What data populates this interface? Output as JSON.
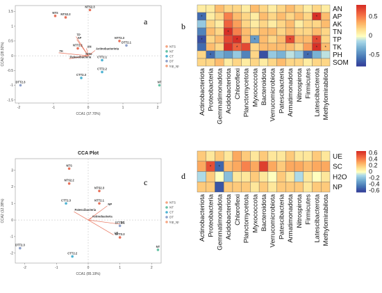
{
  "panel_letters": {
    "a": "a",
    "b": "b",
    "c": "c",
    "d": "d"
  },
  "chart_data": [
    {
      "panel": "a",
      "type": "scatter",
      "title": "",
      "xlabel": "CCA1 (37.70%)",
      "ylabel": "CCA2 (28.92%)",
      "xlim": [
        -2.1,
        2.1
      ],
      "ylim": [
        -1.6,
        1.7
      ],
      "xticks": [
        -2,
        -1,
        0,
        1,
        2
      ],
      "yticks": [
        -1.5,
        -1,
        -0.5,
        0,
        0.5,
        1,
        1.5
      ],
      "legend": [
        {
          "label": "NTS",
          "color": "#f4a582"
        },
        {
          "label": "NT",
          "color": "#66c2a5"
        },
        {
          "label": "CT",
          "color": "#4eb3d3"
        },
        {
          "label": "DT",
          "color": "#8da0cb"
        },
        {
          "label": "top_sp",
          "color": "#f4a582"
        }
      ],
      "points": [
        {
          "label": "NTS2.3",
          "x": 0.05,
          "y": 1.55,
          "color": "#e8725a"
        },
        {
          "label": "NTS",
          "x": -0.95,
          "y": 1.35,
          "color": "#e8725a"
        },
        {
          "label": "NTS2.2",
          "x": -0.65,
          "y": 1.3,
          "color": "#e8725a"
        },
        {
          "label": "NTT2.3",
          "x": 0.9,
          "y": 0.5,
          "color": "#e8725a"
        },
        {
          "label": "DTT2.1",
          "x": 1.1,
          "y": 0.35,
          "color": "#8da0cb"
        },
        {
          "label": "CTT2.1",
          "x": 0.4,
          "y": -0.15,
          "color": "#4eb3d3"
        },
        {
          "label": "CTT2.2",
          "x": 0.4,
          "y": -0.55,
          "color": "#4eb3d3"
        },
        {
          "label": "CTT2.3",
          "x": -0.2,
          "y": -0.75,
          "color": "#4eb3d3"
        },
        {
          "label": "DTT2.3",
          "x": -1.95,
          "y": -1.0,
          "color": "#8da0cb"
        },
        {
          "label": "NT",
          "x": 2.05,
          "y": -1.0,
          "color": "#66c2a5"
        },
        {
          "label": "NTT2.1",
          "x": -0.3,
          "y": 0.25,
          "color": "#e8725a"
        }
      ],
      "vectors": [
        {
          "label": "TP",
          "x": -0.35,
          "y": 0.65
        },
        {
          "label": "AP",
          "x": -0.33,
          "y": 0.55
        },
        {
          "label": "TK",
          "x": -0.85,
          "y": 0.1
        },
        {
          "label": "AN",
          "x": -0.05,
          "y": 0.25
        },
        {
          "label": "SOM",
          "x": -0.1,
          "y": 0.0
        },
        {
          "label": "Actinobacteriota",
          "x": 0.2,
          "y": 0.18
        },
        {
          "label": "Patescibacteria",
          "x": -0.55,
          "y": -0.1
        }
      ]
    },
    {
      "panel": "b",
      "type": "heatmap",
      "rows": [
        "AN",
        "AP",
        "AK",
        "TN",
        "TP",
        "TK",
        "PH",
        "SOM"
      ],
      "columns": [
        "Actinobacteriota",
        "Proteobacteria",
        "Gemmatimonadota",
        "Acidobacteriota",
        "Chloroflexi",
        "Planctomycetota",
        "Myxococcota",
        "Bacteroidota",
        "Verrucomicrobiota",
        "Patescibacteria",
        "Armatimonadota",
        "Nitrospirota",
        "Firmicutes",
        "Latescibacterota",
        "Methylomirabilota"
      ],
      "colorbar": {
        "min": -0.8,
        "max": 0.8,
        "ticks": [
          "0.5",
          "0",
          "-0.5"
        ]
      },
      "values": [
        [
          0.1,
          0.1,
          0.3,
          0.2,
          0.2,
          0.1,
          0.3,
          0.2,
          0.1,
          0.2,
          0.3,
          0.2,
          0.1,
          0.2,
          0.1
        ],
        [
          -0.6,
          0.1,
          0.2,
          0.5,
          0.3,
          0.2,
          0.1,
          0.3,
          0.2,
          0.3,
          0.2,
          0.3,
          0.2,
          0.8,
          0.3
        ],
        [
          -0.2,
          0.2,
          0.1,
          0.6,
          0.4,
          0.2,
          0.1,
          0.2,
          0.1,
          0.2,
          0.3,
          0.1,
          0.2,
          0.2,
          0.3
        ],
        [
          -0.5,
          0.3,
          0.2,
          0.8,
          0.5,
          0.3,
          0.2,
          0.3,
          0.3,
          0.2,
          0.3,
          0.2,
          0.2,
          0.3,
          0.2
        ],
        [
          -0.7,
          0.2,
          0.3,
          0.7,
          0.8,
          0.3,
          -0.4,
          0.3,
          0.2,
          0.3,
          0.7,
          0.3,
          0.3,
          0.7,
          0.2
        ],
        [
          -0.6,
          0.3,
          0.2,
          0.8,
          0.6,
          0.7,
          0.2,
          0.3,
          0.3,
          0.3,
          0.3,
          0.2,
          0.4,
          0.8,
          0.3
        ],
        [
          0.2,
          -0.6,
          -0.3,
          -0.4,
          -0.2,
          -0.5,
          0.2,
          -0.7,
          -0.2,
          -0.3,
          -0.1,
          -0.2,
          -0.6,
          -0.3,
          -0.1
        ],
        [
          0.2,
          0.2,
          0.3,
          0.1,
          0.2,
          0.1,
          0.2,
          0.1,
          0.2,
          0.3,
          0.2,
          0.2,
          0.1,
          0.2,
          0.2
        ]
      ],
      "stars": [
        [
          1,
          0
        ],
        [
          1,
          13
        ],
        [
          3,
          3
        ],
        [
          4,
          0
        ],
        [
          4,
          4
        ],
        [
          4,
          6
        ],
        [
          4,
          10
        ],
        [
          4,
          13
        ],
        [
          5,
          4
        ],
        [
          5,
          13
        ],
        [
          5,
          14
        ],
        [
          6,
          1
        ],
        [
          6,
          12
        ]
      ]
    },
    {
      "panel": "c",
      "type": "scatter",
      "title": "CCA Plot",
      "xlabel": "CCA1 (85.19%)",
      "ylabel": "CCA2 (12.38%)",
      "xlim": [
        -2.3,
        2.3
      ],
      "ylim": [
        -2.6,
        3.7
      ],
      "xticks": [
        -2,
        -1,
        0,
        1,
        2
      ],
      "yticks": [
        -2,
        -1,
        0,
        1,
        2,
        3
      ],
      "legend": [
        {
          "label": "NTS",
          "color": "#f4a582"
        },
        {
          "label": "NT",
          "color": "#66c2a5"
        },
        {
          "label": "CT",
          "color": "#4eb3d3"
        },
        {
          "label": "DT",
          "color": "#8da0cb"
        },
        {
          "label": "top_sp",
          "color": "#f4a582"
        }
      ],
      "points": [
        {
          "label": "NTS",
          "x": -0.6,
          "y": 3.1,
          "color": "#e8725a"
        },
        {
          "label": "NTS2.2",
          "x": -0.6,
          "y": 2.2,
          "color": "#e8725a"
        },
        {
          "label": "NTS2.3",
          "x": 0.35,
          "y": 1.75,
          "color": "#e8725a"
        },
        {
          "label": "CTT2.3",
          "x": -0.7,
          "y": 1.0,
          "color": "#4eb3d3"
        },
        {
          "label": "NTT2.1",
          "x": 0.35,
          "y": 1.0,
          "color": "#e8725a"
        },
        {
          "label": "DTT2.1",
          "x": 1.0,
          "y": -0.35,
          "color": "#8da0cb"
        },
        {
          "label": "NTT2.2",
          "x": 1.0,
          "y": -1.05,
          "color": "#e8725a"
        },
        {
          "label": "DTT2.3",
          "x": -2.15,
          "y": -1.7,
          "color": "#8da0cb"
        },
        {
          "label": "CTT2.2",
          "x": -0.5,
          "y": -2.2,
          "color": "#4eb3d3"
        },
        {
          "label": "NT",
          "x": 2.2,
          "y": -1.8,
          "color": "#66c2a5"
        }
      ],
      "vectors": [
        {
          "label": "NP",
          "x": 0.6,
          "y": 0.85
        },
        {
          "label": "SC",
          "x": 1.0,
          "y": -0.25
        },
        {
          "label": "UE",
          "x": 0.8,
          "y": -0.9
        },
        {
          "label": "Patescibacteria",
          "x": -0.45,
          "y": 0.5
        },
        {
          "label": "Actinobacteria",
          "x": 0.1,
          "y": 0.1
        }
      ]
    },
    {
      "panel": "d",
      "type": "heatmap",
      "rows": [
        "UE",
        "SC",
        "H2O",
        "NP"
      ],
      "columns": [
        "Actinobacteriota",
        "Proteobacteria",
        "Gemmatimonadota",
        "Acidobacteriota",
        "Chloroflexi",
        "Planctomycetota",
        "Myxococcota",
        "Bacteroidota",
        "Verrucomicrobiota",
        "Patescibacteria",
        "Armatimonadota",
        "Nitrospirota",
        "Firmicutes",
        "Latescibacterota",
        "Methylomirabilota"
      ],
      "colorbar": {
        "min": -0.65,
        "max": 0.65,
        "ticks": [
          "0.6",
          "0.4",
          "0.2",
          "0",
          "-0.2",
          "-0.4",
          "-0.6"
        ]
      },
      "values": [
        [
          0.2,
          0.1,
          0.2,
          0.1,
          0.3,
          0.2,
          0.1,
          0.2,
          0.1,
          0.1,
          0.2,
          0.1,
          0.1,
          0.2,
          0.1
        ],
        [
          0.3,
          0.55,
          -0.5,
          0.25,
          0.3,
          0.4,
          0.3,
          0.6,
          0.3,
          0.2,
          0.3,
          0.3,
          0.25,
          0.3,
          0.3
        ],
        [
          -0.1,
          0.2,
          0.0,
          -0.2,
          0.1,
          0.1,
          0.2,
          0.1,
          0.0,
          0.2,
          0.1,
          -0.1,
          0.1,
          0.0,
          0.1
        ],
        [
          0.2,
          0.2,
          -0.55,
          0.2,
          0.2,
          0.2,
          0.1,
          0.2,
          0.1,
          0.2,
          0.2,
          0.2,
          0.1,
          0.2,
          0.2
        ]
      ],
      "stars": [
        [
          1,
          1
        ],
        [
          1,
          2
        ]
      ]
    }
  ]
}
